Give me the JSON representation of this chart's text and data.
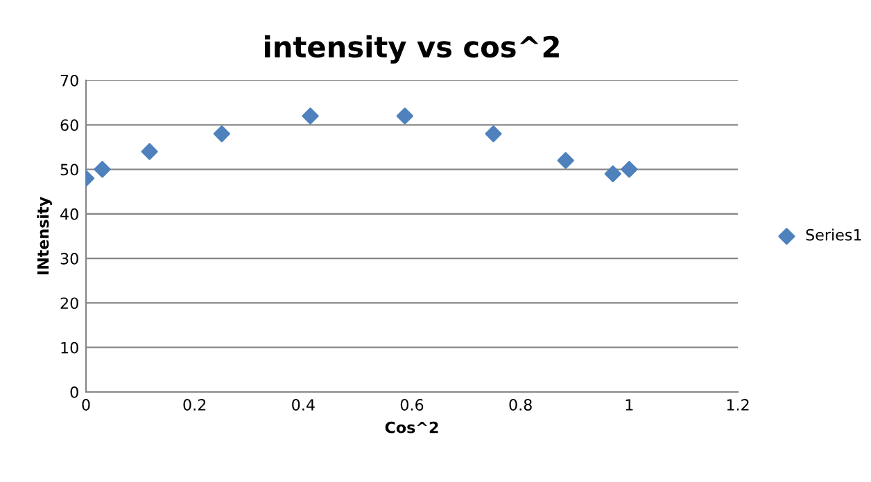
{
  "chart_data": {
    "type": "scatter",
    "title": "intensity vs cos^2",
    "xlabel": "Cos^2",
    "ylabel": "INtensity",
    "x": [
      0,
      0.03,
      0.117,
      0.25,
      0.413,
      0.587,
      0.75,
      0.883,
      0.97,
      1
    ],
    "series": [
      {
        "name": "Series1",
        "color": "#4f81bd",
        "values": [
          48,
          50,
          54,
          58,
          62,
          62,
          58,
          52,
          49,
          50
        ]
      }
    ],
    "xlim": [
      0,
      1.2
    ],
    "xticks": [
      0,
      0.2,
      0.4,
      0.6,
      0.8,
      1,
      1.2
    ],
    "ylim": [
      0,
      70
    ],
    "yticks": [
      0,
      10,
      20,
      30,
      40,
      50,
      60,
      70
    ],
    "grid": "y",
    "legend": "right",
    "marker": "diamond"
  }
}
